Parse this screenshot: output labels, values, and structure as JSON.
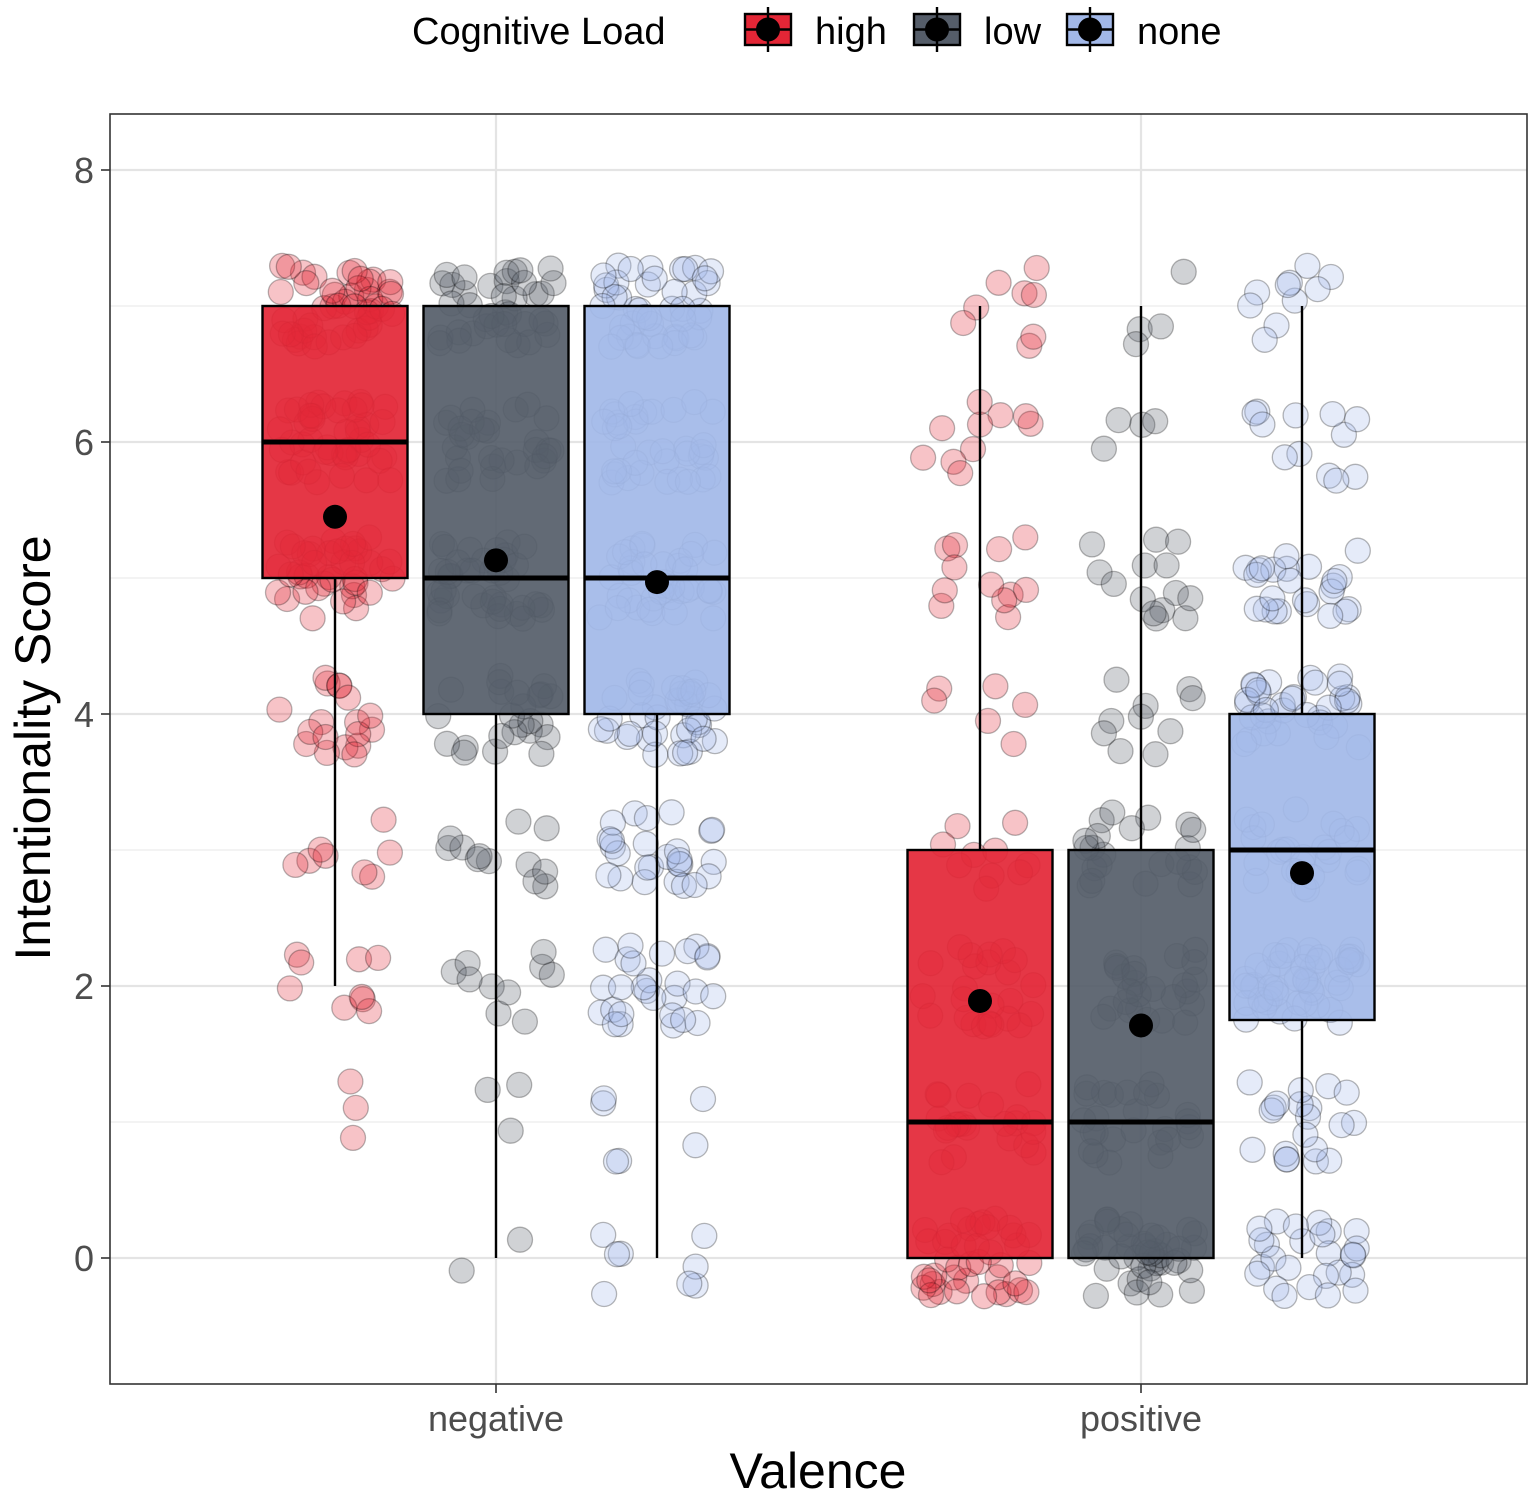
{
  "chart_data": {
    "type": "boxplot",
    "xlabel": "Valence",
    "ylabel": "Intentionality Score",
    "ylim": [
      -0.92,
      8.42
    ],
    "yticks": [
      0,
      2,
      4,
      6,
      8
    ],
    "grid": true,
    "legend": {
      "title": "Cognitive Load",
      "position": "top",
      "entries": [
        "high",
        "low",
        "none"
      ]
    },
    "categories": [
      "negative",
      "positive"
    ],
    "colors": {
      "high": "#E32636",
      "low": "#555D69",
      "none": "#A2B8E8",
      "mean_point": "#000000"
    },
    "series": [
      {
        "name": "high",
        "boxes": [
          {
            "category": "negative",
            "whisker_low": 2,
            "q1": 5,
            "median": 6,
            "q3": 7,
            "whisker_high": 7,
            "mean": 5.45
          },
          {
            "category": "positive",
            "whisker_low": 0,
            "q1": 0,
            "median": 1,
            "q3": 3,
            "whisker_high": 7,
            "mean": 1.89
          }
        ]
      },
      {
        "name": "low",
        "boxes": [
          {
            "category": "negative",
            "whisker_low": 0,
            "q1": 4,
            "median": 5,
            "q3": 7,
            "whisker_high": 7,
            "mean": 5.13
          },
          {
            "category": "positive",
            "whisker_low": 0,
            "q1": 0,
            "median": 1,
            "q3": 3,
            "whisker_high": 7,
            "mean": 1.71
          }
        ]
      },
      {
        "name": "none",
        "boxes": [
          {
            "category": "negative",
            "whisker_low": 0,
            "q1": 4,
            "median": 5,
            "q3": 7,
            "whisker_high": 7,
            "mean": 4.97
          },
          {
            "category": "positive",
            "whisker_low": 0,
            "q1": 1.75,
            "median": 3,
            "q3": 4,
            "whisker_high": 7,
            "mean": 2.83
          }
        ]
      }
    ],
    "jitter_distribution": {
      "note": "approximate count of jittered raw responses per score level (0-7)",
      "levels": [
        0,
        1,
        2,
        3,
        4,
        5,
        6,
        7
      ],
      "high-negative": [
        0,
        3,
        9,
        8,
        18,
        40,
        45,
        48
      ],
      "low-negative": [
        2,
        3,
        10,
        12,
        24,
        40,
        30,
        38
      ],
      "none-negative": [
        8,
        6,
        28,
        26,
        38,
        40,
        36,
        44
      ],
      "high-positive": [
        40,
        22,
        24,
        10,
        6,
        12,
        10,
        8
      ],
      "low-positive": [
        44,
        26,
        26,
        22,
        10,
        14,
        4,
        4
      ],
      "none-positive": [
        26,
        20,
        48,
        26,
        34,
        24,
        12,
        10
      ]
    }
  }
}
